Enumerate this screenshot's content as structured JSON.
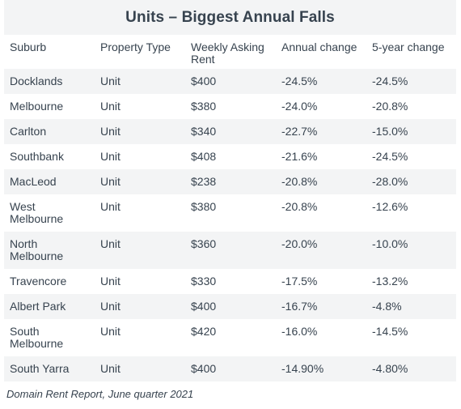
{
  "title": "Units – Biggest Annual Falls",
  "columns": [
    "Suburb",
    "Property Type",
    "Weekly Asking Rent",
    "Annual change",
    "5-year change"
  ],
  "rows": [
    {
      "suburb": "Docklands",
      "type": "Unit",
      "rent": "$400",
      "annual": "-24.5%",
      "five_year": "-24.5%"
    },
    {
      "suburb": "Melbourne",
      "type": "Unit",
      "rent": "$380",
      "annual": "-24.0%",
      "five_year": "-20.8%"
    },
    {
      "suburb": "Carlton",
      "type": "Unit",
      "rent": "$340",
      "annual": "-22.7%",
      "five_year": "-15.0%"
    },
    {
      "suburb": "Southbank",
      "type": "Unit",
      "rent": "$408",
      "annual": "-21.6%",
      "five_year": "-24.5%"
    },
    {
      "suburb": "MacLeod",
      "type": "Unit",
      "rent": "$238",
      "annual": "-20.8%",
      "five_year": "-28.0%"
    },
    {
      "suburb": "West Melbourne",
      "type": "Unit",
      "rent": "$380",
      "annual": "-20.8%",
      "five_year": "-12.6%"
    },
    {
      "suburb": "North Melbourne",
      "type": "Unit",
      "rent": "$360",
      "annual": "-20.0%",
      "five_year": "-10.0%"
    },
    {
      "suburb": "Travencore",
      "type": "Unit",
      "rent": "$330",
      "annual": "-17.5%",
      "five_year": "-13.2%"
    },
    {
      "suburb": "Albert Park",
      "type": "Unit",
      "rent": "$400",
      "annual": "-16.7%",
      "five_year": "-4.8%"
    },
    {
      "suburb": "South Melbourne",
      "type": "Unit",
      "rent": "$420",
      "annual": "-16.0%",
      "five_year": "-14.5%"
    },
    {
      "suburb": "South Yarra",
      "type": "Unit",
      "rent": "$400",
      "annual": "-14.90%",
      "five_year": "-4.80%"
    }
  ],
  "source": "Domain Rent Report, June quarter 2021"
}
